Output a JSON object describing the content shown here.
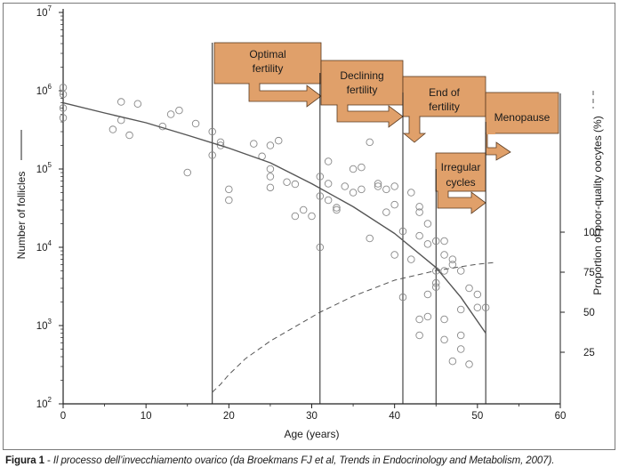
{
  "chart_data": {
    "type": "scatter",
    "xlabel": "Age (years)",
    "ylabel": "Number of follicles",
    "ylabel_right": "Proportion of poor-quality oocytes (%)",
    "x_ticks": [
      "0",
      "10",
      "20",
      "30",
      "40",
      "50",
      "60"
    ],
    "xlim": [
      0,
      60
    ],
    "y_log_range": [
      2,
      7
    ],
    "y_ticks": [
      {
        "base": "10",
        "exp": "2"
      },
      {
        "base": "10",
        "exp": "3"
      },
      {
        "base": "10",
        "exp": "4"
      },
      {
        "base": "10",
        "exp": "5"
      },
      {
        "base": "10",
        "exp": "6"
      },
      {
        "base": "10",
        "exp": "7"
      }
    ],
    "right_ticks": [
      "25",
      "50",
      "75",
      "100"
    ],
    "right_values": [
      25,
      50,
      75,
      100
    ],
    "colors": {
      "arrow_fill": "#e0a06a",
      "arrow_stroke": "#5a3a20",
      "axis": "#222222",
      "marker": "#888888",
      "curve": "#555555"
    },
    "phases": [
      {
        "lines": [
          "Optimal",
          "fertility"
        ],
        "x_start": 18,
        "x_end": 31
      },
      {
        "lines": [
          "Declining",
          "fertility"
        ],
        "x_start": 31,
        "x_end": 41
      },
      {
        "lines": [
          "End of",
          "fertility"
        ],
        "x_start": 41,
        "x_end": 51
      },
      {
        "lines": [
          "Menopause"
        ],
        "x_start": 51,
        "x_end": 60
      },
      {
        "lines": [
          "Irregular",
          "cycles"
        ],
        "x_start": 45,
        "x_end": 51
      }
    ],
    "phase_boundaries": [
      18,
      31,
      41,
      45,
      51
    ],
    "series": [
      {
        "name": "Number of follicles (observed)",
        "type": "scatter",
        "points": [
          [
            0,
            1100000
          ],
          [
            0,
            900000
          ],
          [
            0,
            600000
          ],
          [
            0,
            450000
          ],
          [
            6,
            320000
          ],
          [
            7,
            720000
          ],
          [
            7,
            420000
          ],
          [
            8,
            270000
          ],
          [
            9,
            680000
          ],
          [
            12,
            350000
          ],
          [
            13,
            500000
          ],
          [
            14,
            560000
          ],
          [
            15,
            90000
          ],
          [
            16,
            380000
          ],
          [
            18,
            300000
          ],
          [
            18,
            150000
          ],
          [
            19,
            220000
          ],
          [
            19,
            200000
          ],
          [
            20,
            55000
          ],
          [
            20,
            40000
          ],
          [
            23,
            210000
          ],
          [
            24,
            145000
          ],
          [
            25,
            200000
          ],
          [
            25,
            100000
          ],
          [
            25,
            80000
          ],
          [
            25,
            58000
          ],
          [
            26,
            230000
          ],
          [
            27,
            68000
          ],
          [
            28,
            64000
          ],
          [
            28,
            25000
          ],
          [
            29,
            30000
          ],
          [
            30,
            25000
          ],
          [
            31,
            80000
          ],
          [
            31,
            45000
          ],
          [
            31,
            10000
          ],
          [
            32,
            125000
          ],
          [
            32,
            65000
          ],
          [
            32,
            40000
          ],
          [
            33,
            30000
          ],
          [
            33,
            32000
          ],
          [
            34,
            60000
          ],
          [
            35,
            100000
          ],
          [
            35,
            50000
          ],
          [
            36,
            105000
          ],
          [
            36,
            55000
          ],
          [
            37,
            220000
          ],
          [
            37,
            13000
          ],
          [
            38,
            60000
          ],
          [
            38,
            65000
          ],
          [
            39,
            55000
          ],
          [
            39,
            28000
          ],
          [
            40,
            60000
          ],
          [
            40,
            35000
          ],
          [
            40,
            8000
          ],
          [
            41,
            16000
          ],
          [
            41,
            2300
          ],
          [
            42,
            50000
          ],
          [
            42,
            7000
          ],
          [
            43,
            28000
          ],
          [
            43,
            33000
          ],
          [
            43,
            14000
          ],
          [
            43,
            1200
          ],
          [
            43,
            750
          ],
          [
            44,
            20000
          ],
          [
            44,
            11000
          ],
          [
            44,
            2500
          ],
          [
            44,
            1300
          ],
          [
            45,
            12000
          ],
          [
            45,
            5000
          ],
          [
            45,
            3500
          ],
          [
            45,
            3100
          ],
          [
            46,
            12000
          ],
          [
            46,
            8000
          ],
          [
            46,
            5000
          ],
          [
            46,
            1200
          ],
          [
            46,
            660
          ],
          [
            47,
            7000
          ],
          [
            47,
            6000
          ],
          [
            47,
            350
          ],
          [
            48,
            5000
          ],
          [
            48,
            1600
          ],
          [
            48,
            750
          ],
          [
            48,
            500
          ],
          [
            49,
            3000
          ],
          [
            49,
            320
          ],
          [
            50,
            2500
          ],
          [
            50,
            1700
          ],
          [
            51,
            1700
          ]
        ]
      },
      {
        "name": "Number of follicles (fitted)",
        "type": "line",
        "points": [
          [
            0,
            700000
          ],
          [
            5,
            520000
          ],
          [
            10,
            390000
          ],
          [
            15,
            270000
          ],
          [
            20,
            185000
          ],
          [
            25,
            120000
          ],
          [
            30,
            65000
          ],
          [
            35,
            33000
          ],
          [
            40,
            15000
          ],
          [
            45,
            5500
          ],
          [
            48,
            2300
          ],
          [
            51,
            800
          ]
        ]
      },
      {
        "name": "Proportion of poor-quality oocytes (%)",
        "type": "line",
        "axis": "right",
        "points": [
          [
            18,
            0
          ],
          [
            19,
            5
          ],
          [
            20,
            11
          ],
          [
            22,
            21
          ],
          [
            25,
            32
          ],
          [
            28,
            41
          ],
          [
            31,
            50
          ],
          [
            35,
            60
          ],
          [
            40,
            70
          ],
          [
            45,
            76
          ],
          [
            50,
            80
          ],
          [
            52,
            81
          ]
        ]
      }
    ]
  },
  "caption": {
    "label": "Figura 1",
    "separator": " - ",
    "text": "Il processo dell’invecchiamento ovarico (da Broekmans FJ et al, Trends in Endocrinology and Metabolism, 2007)."
  }
}
